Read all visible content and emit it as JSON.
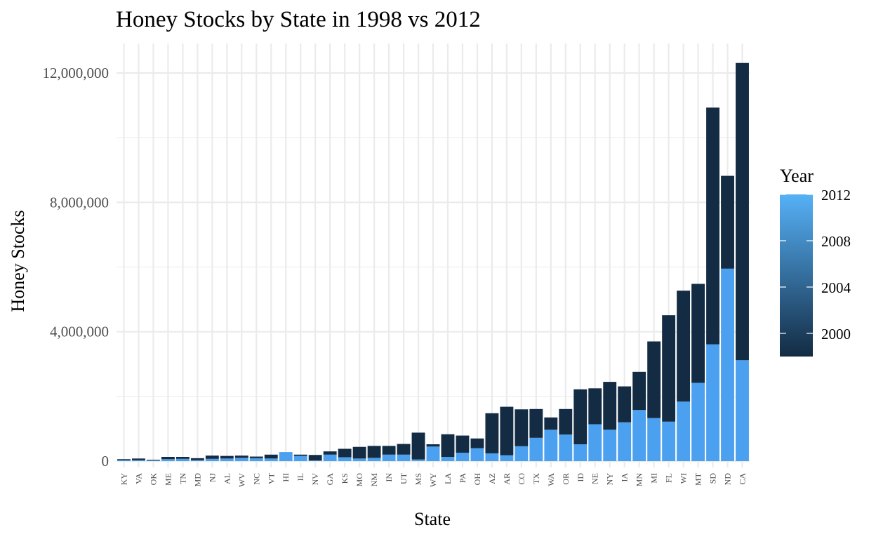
{
  "chart_data": {
    "type": "bar",
    "stacked": true,
    "title": "Honey Stocks by State in 1998 vs 2012",
    "xlabel": "State",
    "ylabel": "Honey Stocks",
    "ylim": [
      -200000,
      13000000
    ],
    "yticks": [
      0,
      4000000,
      8000000,
      12000000
    ],
    "ytick_labels": [
      "0",
      "4,000,000",
      "8,000,000",
      "12,000,000"
    ],
    "grid": true,
    "legend": {
      "title": "Year",
      "type": "colorbar",
      "position": "right",
      "range": [
        1998,
        2012
      ],
      "ticks": [
        2000,
        2004,
        2008,
        2012
      ],
      "tick_labels": [
        "2000",
        "2004",
        "2008",
        "2012"
      ],
      "color_low": "#132b43",
      "color_high": "#56b1f7"
    },
    "colors": {
      "year_1998": "#132b43",
      "year_2012": "#4ba0ef"
    },
    "categories": [
      "KY",
      "VA",
      "OK",
      "ME",
      "TN",
      "MD",
      "NJ",
      "AL",
      "WV",
      "NC",
      "VT",
      "HI",
      "IL",
      "NV",
      "GA",
      "KS",
      "MO",
      "NM",
      "IN",
      "UT",
      "MS",
      "WY",
      "LA",
      "PA",
      "OH",
      "AZ",
      "AR",
      "CO",
      "TX",
      "WA",
      "OR",
      "ID",
      "NE",
      "NY",
      "IA",
      "MN",
      "MI",
      "FL",
      "WI",
      "MT",
      "SD",
      "ND",
      "CA"
    ],
    "series": [
      {
        "name": "2012",
        "values": [
          30000,
          30000,
          20000,
          60000,
          70000,
          30000,
          70000,
          80000,
          100000,
          90000,
          80000,
          280000,
          160000,
          20000,
          200000,
          120000,
          80000,
          100000,
          200000,
          200000,
          50000,
          450000,
          130000,
          260000,
          400000,
          240000,
          180000,
          460000,
          720000,
          970000,
          820000,
          520000,
          1140000,
          970000,
          1200000,
          1580000,
          1330000,
          1220000,
          1840000,
          2420000,
          3610000,
          5950000,
          3120000
        ]
      },
      {
        "name": "1998",
        "values": [
          30000,
          50000,
          20000,
          70000,
          60000,
          60000,
          100000,
          80000,
          70000,
          50000,
          120000,
          0,
          40000,
          170000,
          100000,
          260000,
          360000,
          370000,
          270000,
          330000,
          830000,
          70000,
          700000,
          530000,
          300000,
          1240000,
          1500000,
          1140000,
          890000,
          380000,
          790000,
          1700000,
          1110000,
          1480000,
          1110000,
          1180000,
          2370000,
          3290000,
          3430000,
          3060000,
          7320000,
          2870000,
          9190000
        ]
      }
    ]
  }
}
